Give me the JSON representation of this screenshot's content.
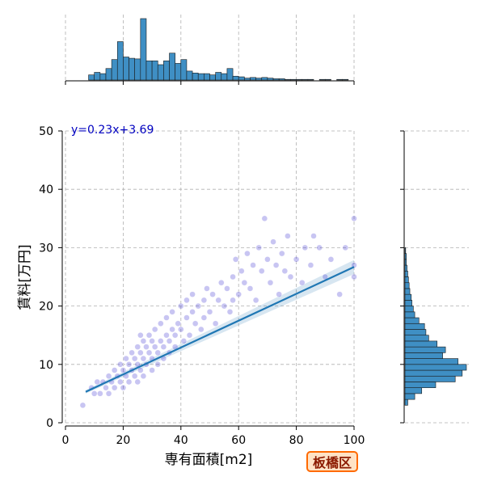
{
  "badge": {
    "text": "板橋区",
    "border_color": "#ff6a00",
    "bg_color": "#ffe3c6",
    "text_color": "#8b1a00"
  },
  "chart_data": {
    "type": "scatter",
    "subtype": "jointplot with regression and marginal histograms",
    "xlabel": "専有面積[m2]",
    "ylabel": "賃料[万円]",
    "xlim": [
      0,
      100
    ],
    "ylim": [
      0,
      50
    ],
    "x_ticks": [
      0,
      20,
      40,
      60,
      80,
      100
    ],
    "y_ticks": [
      0,
      10,
      20,
      30,
      40,
      50
    ],
    "grid": true,
    "annotation": "y=0.23x+3.69",
    "regression": {
      "slope": 0.23,
      "intercept": 3.69,
      "x_range": [
        7,
        100
      ]
    },
    "colors": {
      "points": "#3a2fd0",
      "regression_line": "#1f77b4",
      "histogram": "#3f8fc4",
      "annotation": "#0000c0"
    },
    "scatter_sample": [
      [
        6,
        3
      ],
      [
        9,
        6
      ],
      [
        10,
        5
      ],
      [
        11,
        7
      ],
      [
        12,
        5
      ],
      [
        13,
        7
      ],
      [
        14,
        6
      ],
      [
        15,
        5
      ],
      [
        15,
        8
      ],
      [
        16,
        7
      ],
      [
        17,
        6
      ],
      [
        17,
        9
      ],
      [
        18,
        8
      ],
      [
        19,
        7
      ],
      [
        19,
        10
      ],
      [
        20,
        6
      ],
      [
        20,
        9
      ],
      [
        21,
        8
      ],
      [
        21,
        11
      ],
      [
        22,
        10
      ],
      [
        22,
        7
      ],
      [
        23,
        9
      ],
      [
        23,
        12
      ],
      [
        24,
        11
      ],
      [
        24,
        8
      ],
      [
        25,
        10
      ],
      [
        25,
        13
      ],
      [
        25,
        7
      ],
      [
        26,
        12
      ],
      [
        26,
        9
      ],
      [
        26,
        15
      ],
      [
        27,
        11
      ],
      [
        27,
        14
      ],
      [
        27,
        8
      ],
      [
        28,
        10
      ],
      [
        28,
        13
      ],
      [
        29,
        12
      ],
      [
        29,
        15
      ],
      [
        30,
        11
      ],
      [
        30,
        14
      ],
      [
        30,
        9
      ],
      [
        31,
        13
      ],
      [
        31,
        16
      ],
      [
        32,
        12
      ],
      [
        32,
        10
      ],
      [
        33,
        14
      ],
      [
        33,
        17
      ],
      [
        34,
        13
      ],
      [
        34,
        11
      ],
      [
        35,
        15
      ],
      [
        35,
        18
      ],
      [
        36,
        14
      ],
      [
        36,
        12
      ],
      [
        37,
        16
      ],
      [
        37,
        19
      ],
      [
        38,
        15
      ],
      [
        38,
        13
      ],
      [
        39,
        17
      ],
      [
        40,
        16
      ],
      [
        40,
        20
      ],
      [
        41,
        14
      ],
      [
        42,
        18
      ],
      [
        42,
        21
      ],
      [
        43,
        15
      ],
      [
        44,
        19
      ],
      [
        44,
        22
      ],
      [
        45,
        17
      ],
      [
        46,
        20
      ],
      [
        47,
        16
      ],
      [
        48,
        21
      ],
      [
        48,
        18
      ],
      [
        49,
        23
      ],
      [
        50,
        19
      ],
      [
        51,
        22
      ],
      [
        52,
        17
      ],
      [
        53,
        21
      ],
      [
        54,
        24
      ],
      [
        55,
        20
      ],
      [
        56,
        23
      ],
      [
        57,
        19
      ],
      [
        58,
        25
      ],
      [
        58,
        21
      ],
      [
        59,
        28
      ],
      [
        60,
        22
      ],
      [
        61,
        26
      ],
      [
        62,
        24
      ],
      [
        63,
        29
      ],
      [
        64,
        23
      ],
      [
        65,
        27
      ],
      [
        66,
        21
      ],
      [
        67,
        30
      ],
      [
        68,
        26
      ],
      [
        69,
        35
      ],
      [
        70,
        28
      ],
      [
        71,
        24
      ],
      [
        72,
        31
      ],
      [
        73,
        27
      ],
      [
        74,
        22
      ],
      [
        75,
        29
      ],
      [
        76,
        26
      ],
      [
        77,
        32
      ],
      [
        78,
        25
      ],
      [
        80,
        28
      ],
      [
        82,
        24
      ],
      [
        83,
        30
      ],
      [
        85,
        27
      ],
      [
        86,
        32
      ],
      [
        88,
        30
      ],
      [
        90,
        25
      ],
      [
        92,
        28
      ],
      [
        95,
        22
      ],
      [
        97,
        30
      ],
      [
        100,
        35
      ],
      [
        100,
        25
      ],
      [
        100,
        27
      ]
    ],
    "x_histogram": {
      "bin_edges": [
        8,
        10,
        12,
        14,
        16,
        18,
        20,
        22,
        24,
        26,
        28,
        30,
        32,
        34,
        36,
        38,
        40,
        42,
        44,
        46,
        48,
        50,
        52,
        54,
        56,
        58,
        60,
        62,
        64,
        66,
        68,
        70,
        72,
        74,
        76,
        78,
        80,
        82,
        84,
        86,
        88,
        90,
        92,
        94,
        96,
        98,
        100
      ],
      "counts": [
        8,
        12,
        10,
        18,
        32,
        60,
        36,
        34,
        33,
        96,
        30,
        30,
        24,
        30,
        42,
        26,
        32,
        14,
        11,
        10,
        10,
        8,
        12,
        10,
        18,
        6,
        5,
        3,
        4,
        3,
        4,
        3,
        2,
        2,
        1,
        1,
        1,
        1,
        1,
        0,
        1,
        1,
        0,
        1,
        1,
        0
      ]
    },
    "y_histogram": {
      "bin_edges": [
        3,
        4,
        5,
        6,
        7,
        8,
        9,
        10,
        11,
        12,
        13,
        14,
        15,
        16,
        17,
        18,
        19,
        20,
        21,
        22,
        23,
        24,
        25,
        26,
        27,
        28,
        29,
        30
      ],
      "counts": [
        4,
        14,
        24,
        44,
        72,
        82,
        88,
        76,
        54,
        58,
        46,
        34,
        30,
        28,
        20,
        14,
        12,
        10,
        9,
        7,
        6,
        5,
        4,
        3,
        2,
        2,
        1
      ]
    }
  }
}
